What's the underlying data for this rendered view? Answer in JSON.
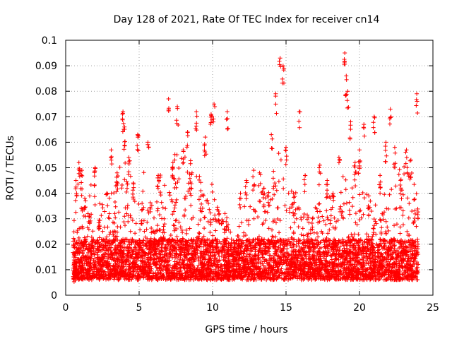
{
  "chart_data": {
    "type": "scatter",
    "title": "Day 128 of 2021, Rate Of TEC Index for receiver cn14",
    "xlabel": "GPS time / hours",
    "ylabel": "ROTI / TECUs",
    "xlim": [
      0,
      25
    ],
    "ylim": [
      0,
      0.1
    ],
    "x_ticks": [
      0,
      5,
      10,
      15,
      20,
      25
    ],
    "x_tick_labels": [
      "0",
      "5",
      "10",
      "15",
      "20",
      "25"
    ],
    "y_ticks": [
      0,
      0.01,
      0.02,
      0.03,
      0.04,
      0.05,
      0.06,
      0.07,
      0.08,
      0.09,
      0.1
    ],
    "y_tick_labels": [
      "0",
      "0.01",
      "0.02",
      "0.03",
      "0.04",
      "0.05",
      "0.06",
      "0.07",
      "0.08",
      "0.09",
      "0.1"
    ],
    "grid": true,
    "marker": "+",
    "color": "#ff0000",
    "series": [
      {
        "values": [
          {
            "x": 0.6,
            "y": 0.013
          },
          {
            "x": 0.7,
            "y": 0.045
          },
          {
            "x": 0.9,
            "y": 0.052
          },
          {
            "x": 1.1,
            "y": 0.049
          },
          {
            "x": 1.3,
            "y": 0.038
          },
          {
            "x": 1.6,
            "y": 0.031
          },
          {
            "x": 2.0,
            "y": 0.05
          },
          {
            "x": 2.3,
            "y": 0.027
          },
          {
            "x": 2.8,
            "y": 0.04
          },
          {
            "x": 3.1,
            "y": 0.057
          },
          {
            "x": 3.5,
            "y": 0.048
          },
          {
            "x": 3.9,
            "y": 0.072
          },
          {
            "x": 4.0,
            "y": 0.066
          },
          {
            "x": 4.3,
            "y": 0.054
          },
          {
            "x": 4.6,
            "y": 0.044
          },
          {
            "x": 4.9,
            "y": 0.063
          },
          {
            "x": 5.2,
            "y": 0.036
          },
          {
            "x": 5.6,
            "y": 0.06
          },
          {
            "x": 6.0,
            "y": 0.025
          },
          {
            "x": 6.3,
            "y": 0.047
          },
          {
            "x": 6.7,
            "y": 0.03
          },
          {
            "x": 7.0,
            "y": 0.077
          },
          {
            "x": 7.3,
            "y": 0.052
          },
          {
            "x": 7.6,
            "y": 0.074
          },
          {
            "x": 8.0,
            "y": 0.057
          },
          {
            "x": 8.3,
            "y": 0.064
          },
          {
            "x": 8.6,
            "y": 0.048
          },
          {
            "x": 8.9,
            "y": 0.072
          },
          {
            "x": 9.2,
            "y": 0.041
          },
          {
            "x": 9.5,
            "y": 0.062
          },
          {
            "x": 9.9,
            "y": 0.071
          },
          {
            "x": 10.1,
            "y": 0.075
          },
          {
            "x": 10.4,
            "y": 0.033
          },
          {
            "x": 10.8,
            "y": 0.026
          },
          {
            "x": 11.0,
            "y": 0.072
          },
          {
            "x": 11.4,
            "y": 0.018
          },
          {
            "x": 11.9,
            "y": 0.04
          },
          {
            "x": 12.3,
            "y": 0.045
          },
          {
            "x": 12.8,
            "y": 0.049
          },
          {
            "x": 13.2,
            "y": 0.048
          },
          {
            "x": 13.5,
            "y": 0.042
          },
          {
            "x": 14.0,
            "y": 0.063
          },
          {
            "x": 14.3,
            "y": 0.079
          },
          {
            "x": 14.6,
            "y": 0.093
          },
          {
            "x": 14.8,
            "y": 0.09
          },
          {
            "x": 15.0,
            "y": 0.058
          },
          {
            "x": 15.5,
            "y": 0.04
          },
          {
            "x": 15.9,
            "y": 0.072
          },
          {
            "x": 16.3,
            "y": 0.047
          },
          {
            "x": 16.8,
            "y": 0.03
          },
          {
            "x": 17.3,
            "y": 0.051
          },
          {
            "x": 17.8,
            "y": 0.045
          },
          {
            "x": 18.2,
            "y": 0.04
          },
          {
            "x": 18.6,
            "y": 0.054
          },
          {
            "x": 19.0,
            "y": 0.095
          },
          {
            "x": 19.1,
            "y": 0.086
          },
          {
            "x": 19.2,
            "y": 0.08
          },
          {
            "x": 19.4,
            "y": 0.068
          },
          {
            "x": 19.7,
            "y": 0.052
          },
          {
            "x": 20.0,
            "y": 0.057
          },
          {
            "x": 20.3,
            "y": 0.067
          },
          {
            "x": 20.6,
            "y": 0.035
          },
          {
            "x": 21.0,
            "y": 0.07
          },
          {
            "x": 21.4,
            "y": 0.047
          },
          {
            "x": 21.8,
            "y": 0.06
          },
          {
            "x": 22.1,
            "y": 0.073
          },
          {
            "x": 22.4,
            "y": 0.058
          },
          {
            "x": 22.8,
            "y": 0.045
          },
          {
            "x": 23.2,
            "y": 0.057
          },
          {
            "x": 23.5,
            "y": 0.053
          },
          {
            "x": 23.9,
            "y": 0.079
          }
        ],
        "band_profile": [
          {
            "x": 0.5,
            "top": 0.035
          },
          {
            "x": 1.0,
            "top": 0.05
          },
          {
            "x": 1.5,
            "top": 0.042
          },
          {
            "x": 2.0,
            "top": 0.048
          },
          {
            "x": 2.5,
            "top": 0.035
          },
          {
            "x": 3.0,
            "top": 0.045
          },
          {
            "x": 3.5,
            "top": 0.044
          },
          {
            "x": 4.0,
            "top": 0.06
          },
          {
            "x": 4.5,
            "top": 0.048
          },
          {
            "x": 5.0,
            "top": 0.045
          },
          {
            "x": 5.5,
            "top": 0.05
          },
          {
            "x": 6.0,
            "top": 0.03
          },
          {
            "x": 6.5,
            "top": 0.048
          },
          {
            "x": 7.0,
            "top": 0.04
          },
          {
            "x": 7.5,
            "top": 0.058
          },
          {
            "x": 8.0,
            "top": 0.055
          },
          {
            "x": 8.5,
            "top": 0.055
          },
          {
            "x": 9.0,
            "top": 0.045
          },
          {
            "x": 9.5,
            "top": 0.048
          },
          {
            "x": 10.0,
            "top": 0.045
          },
          {
            "x": 10.5,
            "top": 0.028
          },
          {
            "x": 11.0,
            "top": 0.035
          },
          {
            "x": 11.5,
            "top": 0.02
          },
          {
            "x": 12.0,
            "top": 0.032
          },
          {
            "x": 12.5,
            "top": 0.038
          },
          {
            "x": 13.0,
            "top": 0.04
          },
          {
            "x": 13.5,
            "top": 0.04
          },
          {
            "x": 14.0,
            "top": 0.048
          },
          {
            "x": 14.5,
            "top": 0.055
          },
          {
            "x": 15.0,
            "top": 0.048
          },
          {
            "x": 15.5,
            "top": 0.04
          },
          {
            "x": 16.0,
            "top": 0.04
          },
          {
            "x": 16.5,
            "top": 0.032
          },
          {
            "x": 17.0,
            "top": 0.035
          },
          {
            "x": 17.5,
            "top": 0.035
          },
          {
            "x": 18.0,
            "top": 0.038
          },
          {
            "x": 18.5,
            "top": 0.04
          },
          {
            "x": 19.0,
            "top": 0.048
          },
          {
            "x": 19.5,
            "top": 0.042
          },
          {
            "x": 20.0,
            "top": 0.048
          },
          {
            "x": 20.5,
            "top": 0.04
          },
          {
            "x": 21.0,
            "top": 0.035
          },
          {
            "x": 21.5,
            "top": 0.04
          },
          {
            "x": 22.0,
            "top": 0.04
          },
          {
            "x": 22.5,
            "top": 0.048
          },
          {
            "x": 23.0,
            "top": 0.05
          },
          {
            "x": 23.5,
            "top": 0.048
          },
          {
            "x": 24.0,
            "top": 0.04
          }
        ],
        "baseline": 0.003
      }
    ]
  }
}
